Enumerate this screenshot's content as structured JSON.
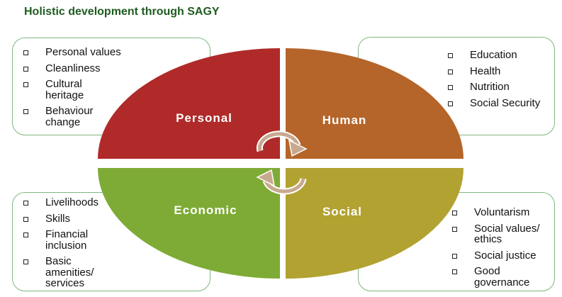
{
  "title": "Holistic development through SAGY",
  "quadrants": {
    "personal": {
      "label": "Personal",
      "color": "#b02a2a"
    },
    "human": {
      "label": "Human",
      "color": "#b5652a"
    },
    "economic": {
      "label": "Economic",
      "color": "#7eab35"
    },
    "social": {
      "label": "Social",
      "color": "#b1a232"
    }
  },
  "lists": {
    "personal": [
      "Personal values",
      "Cleanliness",
      "Cultural heritage",
      "Behaviour change"
    ],
    "human": [
      "Education",
      "Health",
      "Nutrition",
      "Social Security"
    ],
    "economic": [
      "Livelihoods",
      "Skills",
      "Financial inclusion",
      "Basic amenities/ services"
    ],
    "social": [
      "Voluntarism",
      "Social values/ ethics",
      "Social justice",
      "Good governance"
    ]
  },
  "colors": {
    "box_border": "#7fb87f",
    "title": "#1f5b1f",
    "cycle_icon": "#c8a98f"
  },
  "icons": {
    "center": "cycle-arrows-icon"
  }
}
